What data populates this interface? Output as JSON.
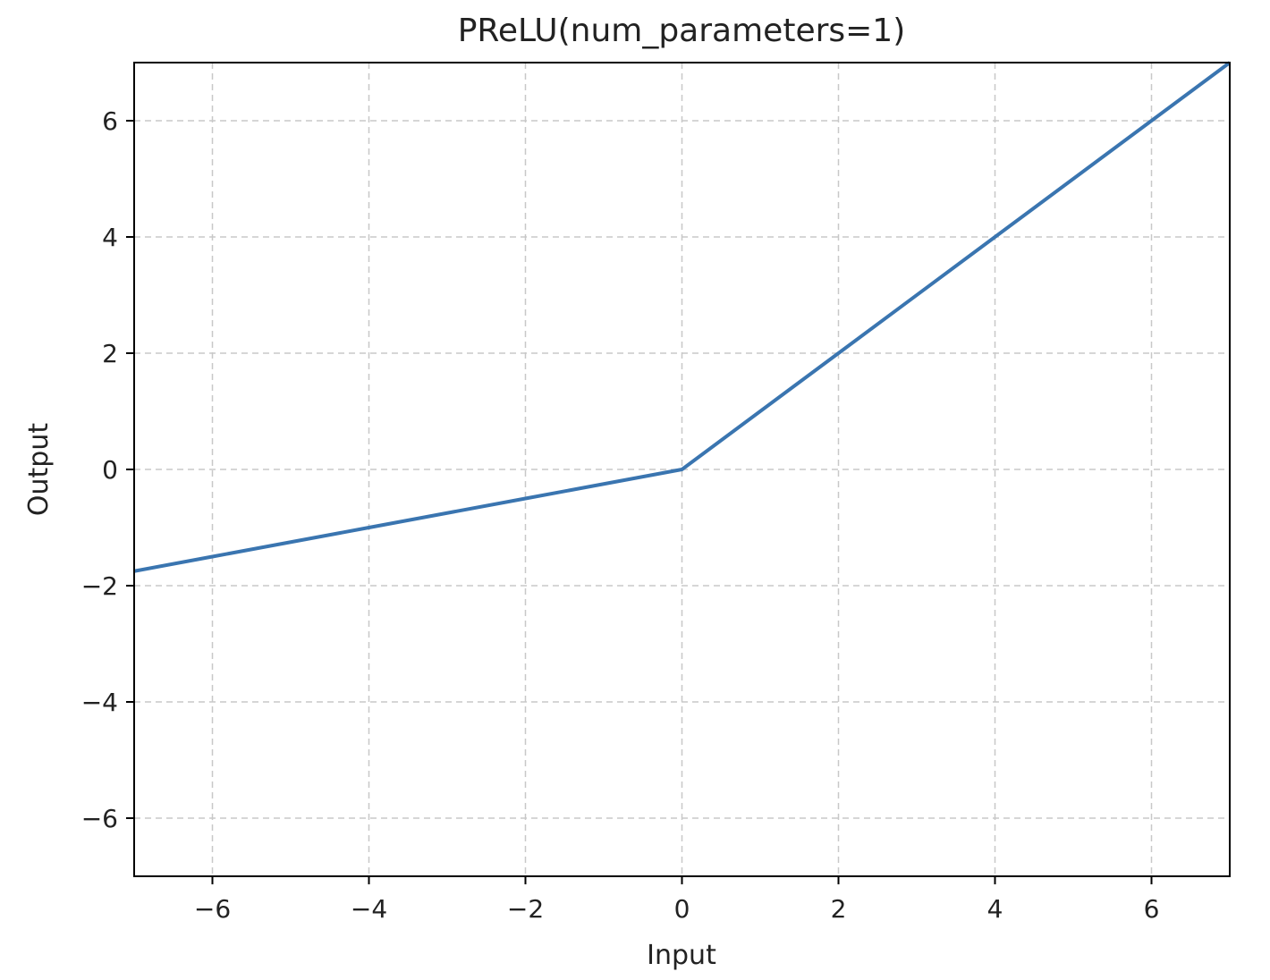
{
  "chart_data": {
    "type": "line",
    "title": "PReLU(num_parameters=1)",
    "xlabel": "Input",
    "ylabel": "Output",
    "xlim": [
      -7,
      7
    ],
    "ylim": [
      -7,
      7
    ],
    "xticks": [
      -6,
      -4,
      -2,
      0,
      2,
      4,
      6
    ],
    "yticks": [
      -6,
      -4,
      -2,
      0,
      2,
      4,
      6
    ],
    "xtick_labels": [
      "−6",
      "−4",
      "−2",
      "0",
      "2",
      "4",
      "6"
    ],
    "ytick_labels": [
      "−6",
      "−4",
      "−2",
      "0",
      "2",
      "4",
      "6"
    ],
    "grid": true,
    "series": [
      {
        "color": "#3a75b0",
        "x": [
          -7,
          -6,
          -4,
          -2,
          0,
          2,
          4,
          6,
          7
        ],
        "y": [
          -1.75,
          -1.5,
          -1.0,
          -0.5,
          0,
          2,
          4,
          6,
          7
        ]
      }
    ]
  }
}
